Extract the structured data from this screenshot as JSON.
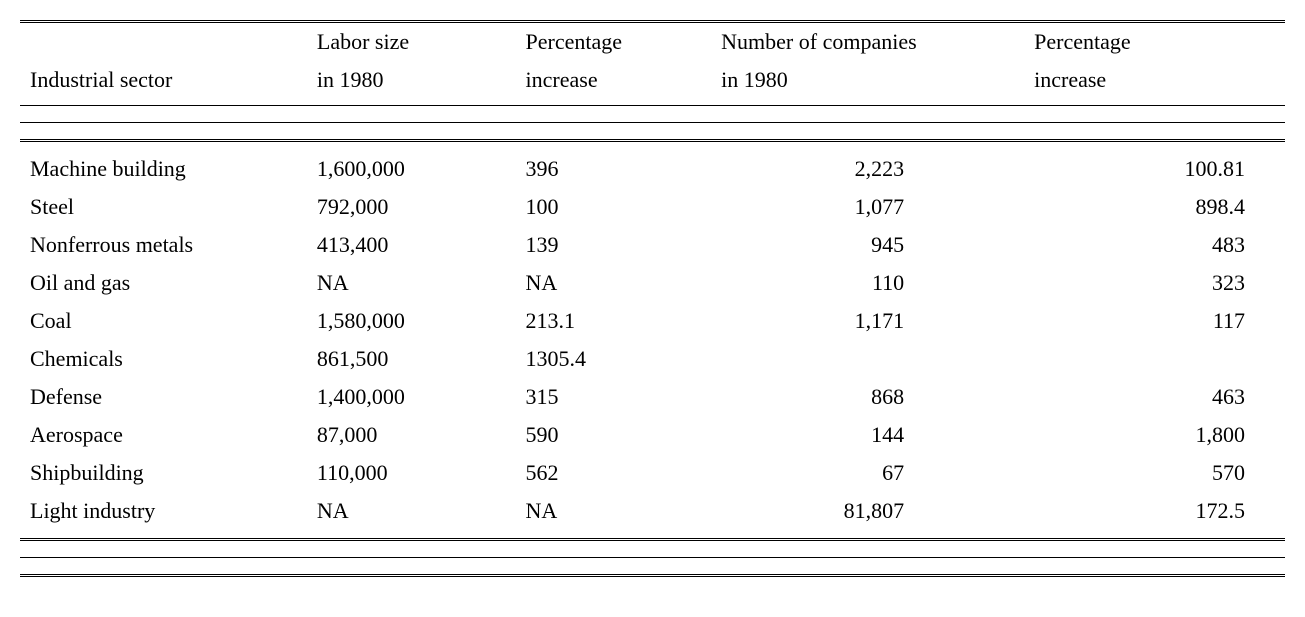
{
  "table": {
    "type": "table",
    "background_color": "#ffffff",
    "text_color": "#000000",
    "font_family": "Georgia, Times New Roman, serif",
    "font_size_pt": 17,
    "rule_color": "#000000",
    "double_rule_style": "double",
    "columns": [
      {
        "key": "sector",
        "label_line1": "",
        "label_line2": "Industrial sector",
        "align": "left",
        "width_pct": 22
      },
      {
        "key": "labor",
        "label_line1": "Labor size",
        "label_line2": "in 1980",
        "align": "left",
        "width_pct": 16
      },
      {
        "key": "pct_labor",
        "label_line1": "Percentage",
        "label_line2": "increase",
        "align": "left",
        "width_pct": 15
      },
      {
        "key": "companies",
        "label_line1": "Number of companies",
        "label_line2": "in 1980",
        "align": "right",
        "width_pct": 24
      },
      {
        "key": "pct_companies",
        "label_line1": "Percentage",
        "label_line2": "increase",
        "align": "right",
        "width_pct": 20
      }
    ],
    "rows": [
      {
        "sector": "Machine building",
        "labor": "1,600,000",
        "pct_labor": "396",
        "companies": "2,223",
        "pct_companies": "100.81"
      },
      {
        "sector": "Steel",
        "labor": "792,000",
        "pct_labor": "100",
        "companies": "1,077",
        "pct_companies": "898.4"
      },
      {
        "sector": "Nonferrous metals",
        "labor": "413,400",
        "pct_labor": "139",
        "companies": "945",
        "pct_companies": "483"
      },
      {
        "sector": "Oil and gas",
        "labor": "NA",
        "pct_labor": "NA",
        "companies": "110",
        "pct_companies": "323"
      },
      {
        "sector": "Coal",
        "labor": "1,580,000",
        "pct_labor": "213.1",
        "companies": "1,171",
        "pct_companies": "117"
      },
      {
        "sector": "Chemicals",
        "labor": "861,500",
        "pct_labor": "1305.4",
        "companies": "",
        "pct_companies": ""
      },
      {
        "sector": "Defense",
        "labor": "1,400,000",
        "pct_labor": "315",
        "companies": "868",
        "pct_companies": "463"
      },
      {
        "sector": "Aerospace",
        "labor": "87,000",
        "pct_labor": "590",
        "companies": "144",
        "pct_companies": "1,800"
      },
      {
        "sector": "Shipbuilding",
        "labor": "110,000",
        "pct_labor": "562",
        "companies": "67",
        "pct_companies": "570"
      },
      {
        "sector": "Light industry",
        "labor": "NA",
        "pct_labor": "NA",
        "companies": "81,807",
        "pct_companies": "172.5"
      }
    ]
  }
}
